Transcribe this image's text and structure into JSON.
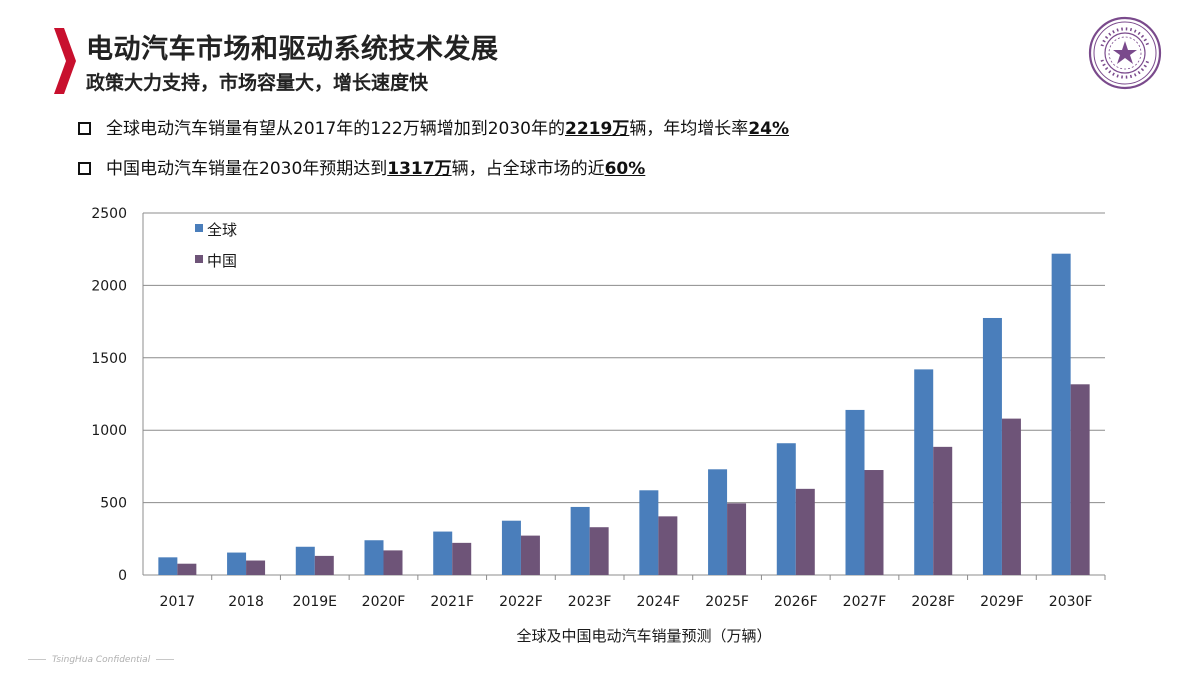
{
  "header": {
    "title": "电动汽车市场和驱动系统技术发展",
    "subtitle": "政策大力支持，市场容量大，增长速度快"
  },
  "bullets": [
    {
      "pre": "全球电动汽车销量有望从2017年的122万辆增加到2030年的",
      "em1": "2219万",
      "mid": "辆，年均增长率",
      "em2": "24%",
      "post": ""
    },
    {
      "pre": "中国电动汽车销量在2030年预期达到",
      "em1": "1317万",
      "mid": "辆，占全球市场的近",
      "em2": "60%",
      "post": ""
    }
  ],
  "logo": {
    "name": "tsinghua-university-seal",
    "color": "#7a4a8c"
  },
  "footer": {
    "text": "TsingHua Confidential"
  },
  "colors": {
    "accent": "#c8102e",
    "global": "#4a7ebb",
    "china": "#6e5478"
  },
  "chart_data": {
    "type": "bar",
    "title": "",
    "xlabel": "全球及中国电动汽车销量预测（万辆）",
    "ylabel": "",
    "ylim": [
      0,
      2500
    ],
    "yticks": [
      0,
      500,
      1000,
      1500,
      2000,
      2500
    ],
    "grid": true,
    "legend_position": "top-left",
    "categories": [
      "2017",
      "2018",
      "2019E",
      "2020F",
      "2021F",
      "2022F",
      "2023F",
      "2024F",
      "2025F",
      "2026F",
      "2027F",
      "2028F",
      "2029F",
      "2030F"
    ],
    "series": [
      {
        "name": "全球",
        "color": "#4a7ebb",
        "values": [
          122,
          155,
          195,
          240,
          300,
          375,
          470,
          585,
          730,
          910,
          1140,
          1420,
          1775,
          2219
        ]
      },
      {
        "name": "中国",
        "color": "#6e5478",
        "values": [
          78,
          100,
          132,
          170,
          222,
          272,
          330,
          405,
          495,
          595,
          725,
          885,
          1080,
          1317
        ]
      }
    ]
  }
}
